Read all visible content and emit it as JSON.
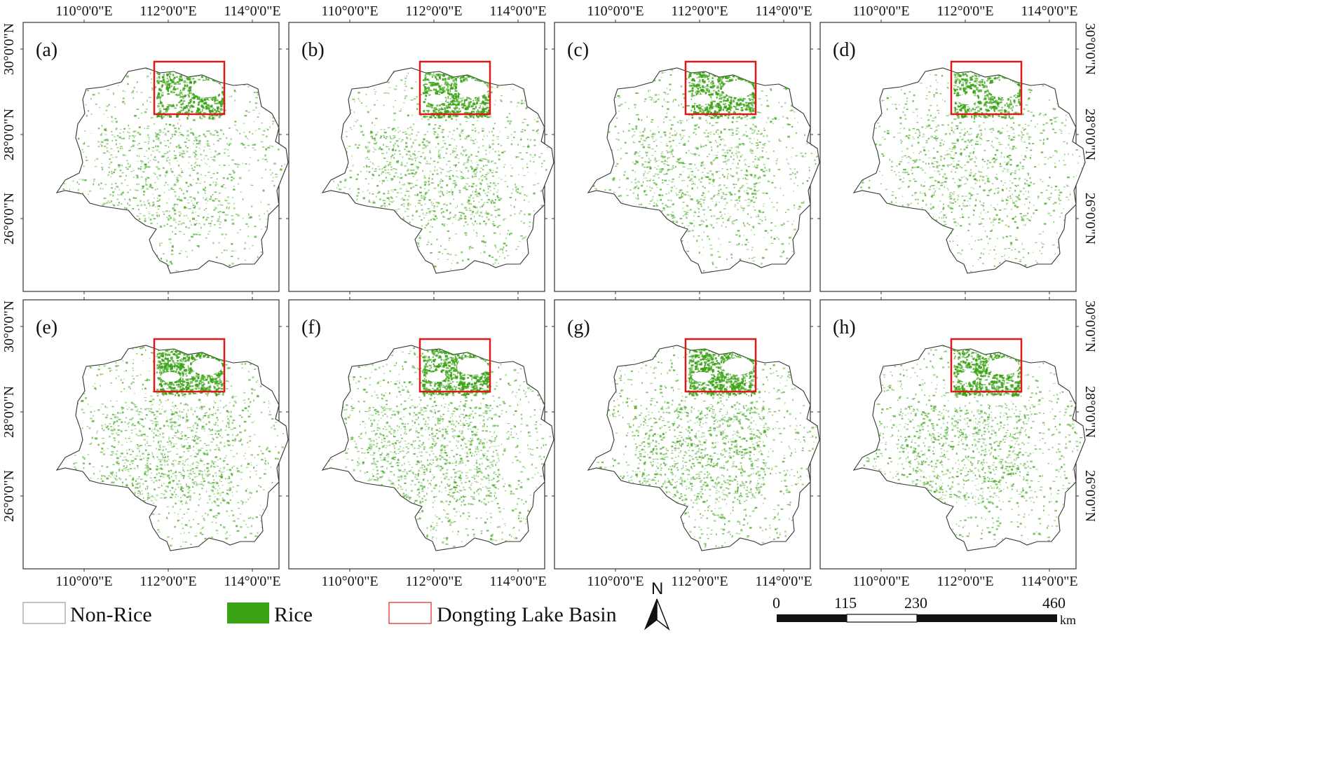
{
  "panels": [
    {
      "label": "(a)",
      "rice_density": 0.55
    },
    {
      "label": "(b)",
      "rice_density": 0.65
    },
    {
      "label": "(c)",
      "rice_density": 0.62
    },
    {
      "label": "(d)",
      "rice_density": 0.58
    },
    {
      "label": "(e)",
      "rice_density": 0.75
    },
    {
      "label": "(f)",
      "rice_density": 0.8
    },
    {
      "label": "(g)",
      "rice_density": 0.82
    },
    {
      "label": "(h)",
      "rice_density": 0.7
    }
  ],
  "longitude_labels": [
    "110°0'0\"E",
    "112°0'0\"E",
    "114°0'0\"E"
  ],
  "latitude_labels": [
    "30°0'0\"N",
    "28°0'0\"N",
    "26°0'0\"N"
  ],
  "legend": [
    {
      "key": "non_rice",
      "label": "Non-Rice",
      "color": "#ffffff",
      "border": "#999999"
    },
    {
      "key": "rice",
      "label": "Rice",
      "color": "#3aa315",
      "border": "#3aa315"
    },
    {
      "key": "basin",
      "label": "Dongting Lake Basin",
      "color": "#ffffff",
      "border": "#e02020"
    }
  ],
  "north_arrow": {
    "label": "N"
  },
  "scale_bar": {
    "ticks": [
      "0",
      "115",
      "230",
      "460"
    ],
    "unit": "km"
  },
  "colors": {
    "rice": "#3aa315",
    "basin_box": "#e01818",
    "outline": "#333333"
  }
}
